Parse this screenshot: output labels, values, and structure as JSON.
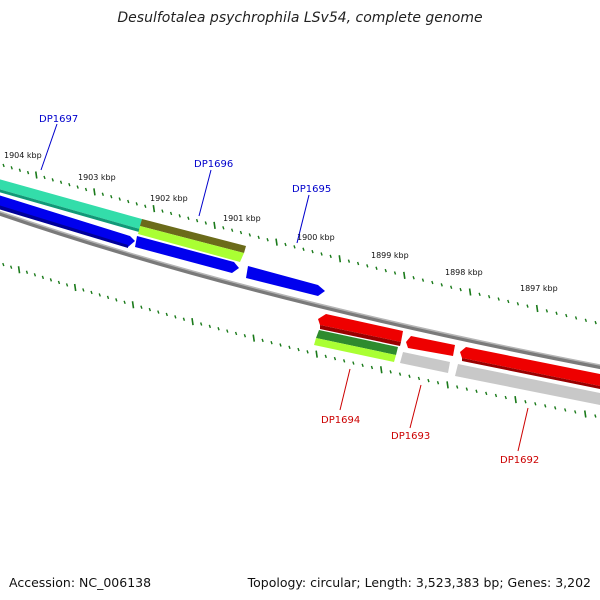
{
  "title": "Desulfotalea psychrophila LSv54, complete genome",
  "footer": {
    "accession": "Accession: NC_006138",
    "summary": "Topology: circular; Length: 3,523,383 bp; Genes: 3,202"
  },
  "ruler": {
    "kbp_labels": [
      "1904 kbp",
      "1903 kbp",
      "1902 kbp",
      "1901 kbp",
      "1900 kbp",
      "1899 kbp",
      "1898 kbp",
      "1897 kbp"
    ]
  },
  "genes_top": [
    {
      "label": "DP1697",
      "color": "#0000cc"
    },
    {
      "label": "DP1696",
      "color": "#0000cc"
    },
    {
      "label": "DP1695",
      "color": "#0000cc"
    }
  ],
  "genes_bottom": [
    {
      "label": "DP1694",
      "color": "#cc0000"
    },
    {
      "label": "DP1693",
      "color": "#cc0000"
    },
    {
      "label": "DP1692",
      "color": "#cc0000"
    }
  ],
  "colors": {
    "tick": "#1a7a1a",
    "backbone": "#808080",
    "cds_forward": "#0000ee",
    "cds_reverse": "#ee0000",
    "green": "#2e8b2e",
    "lime": "#aaff33",
    "teal": "#33ddaa",
    "olive": "#6b6b1a",
    "grey": "#bbbbbb"
  }
}
